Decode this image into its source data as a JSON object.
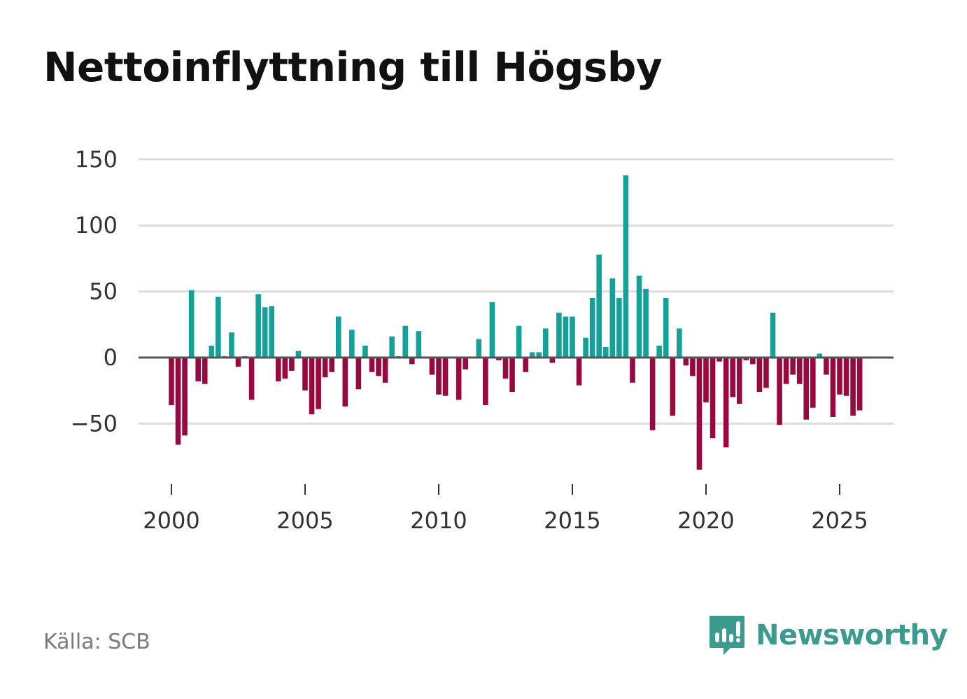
{
  "title": "Nettoinflyttning till Högsby",
  "source": "Källa: SCB",
  "brand": {
    "name": "Newsworthy",
    "icon": "newsworthy-logo-icon"
  },
  "colors": {
    "positive": "#14a19a",
    "negative": "#970a3f",
    "grid": "#dddddd",
    "zero_line": "#555555",
    "brand": "#3d9a8e"
  },
  "chart_data": {
    "type": "bar",
    "title": "Nettoinflyttning till Högsby",
    "xlabel": "",
    "ylabel": "",
    "ylim": [
      -85,
      150
    ],
    "yticks": [
      150,
      100,
      50,
      0,
      -50
    ],
    "ytick_labels": [
      "150",
      "100",
      "50",
      "0",
      "−50"
    ],
    "xlim": [
      1998.8,
      2027.1
    ],
    "xticks": [
      2000,
      2005,
      2010,
      2015,
      2020,
      2025
    ],
    "xtick_labels": [
      "2000",
      "2005",
      "2010",
      "2015",
      "2020",
      "2025"
    ],
    "grid": true,
    "frequency": "quarterly",
    "x": [
      2000.0,
      2000.25,
      2000.5,
      2000.75,
      2001.0,
      2001.25,
      2001.5,
      2001.75,
      2002.0,
      2002.25,
      2002.5,
      2002.75,
      2003.0,
      2003.25,
      2003.5,
      2003.75,
      2004.0,
      2004.25,
      2004.5,
      2004.75,
      2005.0,
      2005.25,
      2005.5,
      2005.75,
      2006.0,
      2006.25,
      2006.5,
      2006.75,
      2007.0,
      2007.25,
      2007.5,
      2007.75,
      2008.0,
      2008.25,
      2008.5,
      2008.75,
      2009.0,
      2009.25,
      2009.5,
      2009.75,
      2010.0,
      2010.25,
      2010.5,
      2010.75,
      2011.0,
      2011.25,
      2011.5,
      2011.75,
      2012.0,
      2012.25,
      2012.5,
      2012.75,
      2013.0,
      2013.25,
      2013.5,
      2013.75,
      2014.0,
      2014.25,
      2014.5,
      2014.75,
      2015.0,
      2015.25,
      2015.5,
      2015.75,
      2016.0,
      2016.25,
      2016.5,
      2016.75,
      2017.0,
      2017.25,
      2017.5,
      2017.75,
      2018.0,
      2018.25,
      2018.5,
      2018.75,
      2019.0,
      2019.25,
      2019.5,
      2019.75,
      2020.0,
      2020.25,
      2020.5,
      2020.75,
      2021.0,
      2021.25,
      2021.5,
      2021.75,
      2022.0,
      2022.25,
      2022.5,
      2022.75,
      2023.0,
      2023.25,
      2023.5,
      2023.75,
      2024.0,
      2024.25,
      2024.5,
      2024.75,
      2025.0,
      2025.25,
      2025.5,
      2025.75
    ],
    "values": [
      -36,
      -66,
      -59,
      51,
      -18,
      -20,
      9,
      46,
      1,
      19,
      -7,
      1,
      -32,
      48,
      38,
      39,
      -18,
      -16,
      -10,
      5,
      -25,
      -43,
      -39,
      -15,
      -11,
      31,
      -37,
      21,
      -24,
      9,
      -11,
      -14,
      -19,
      16,
      1,
      24,
      -5,
      20,
      0,
      -13,
      -28,
      -29,
      0,
      -32,
      -9,
      0,
      14,
      -36,
      42,
      -2,
      -16,
      -26,
      24,
      -11,
      4,
      4,
      22,
      -4,
      34,
      31,
      31,
      -21,
      15,
      45,
      78,
      8,
      60,
      45,
      138,
      -19,
      62,
      52,
      -55,
      9,
      45,
      -44,
      22,
      -6,
      -14,
      -85,
      -34,
      -61,
      -3,
      -68,
      -30,
      -35,
      -2,
      -5,
      -26,
      -23,
      34,
      -51,
      -20,
      -13,
      -20,
      -47,
      -38,
      3,
      -13,
      -45,
      -28,
      -29,
      -44,
      -40
    ]
  }
}
